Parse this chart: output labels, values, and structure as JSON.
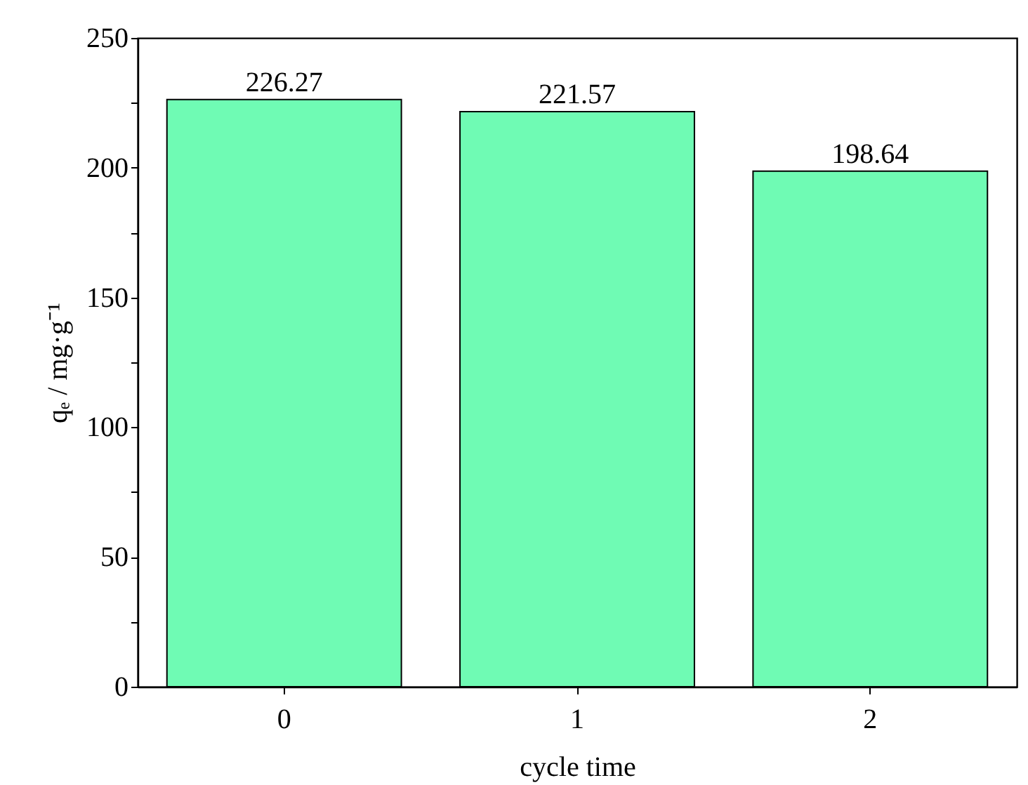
{
  "chart_data": {
    "type": "bar",
    "xlabel": "cycle time",
    "ylabel": "qₑ / mg·g⁻¹",
    "categories": [
      "0",
      "1",
      "2"
    ],
    "values": [
      226.27,
      221.57,
      198.64
    ],
    "color": "#6ffbb4",
    "ylim": [
      0,
      250
    ],
    "yticks": [
      0,
      {
        "value": 25,
        "label": null
      },
      50,
      {
        "value": 75,
        "label": null
      },
      100,
      {
        "value": 125,
        "label": null
      },
      150,
      {
        "value": 175,
        "label": null
      },
      200,
      {
        "value": 225,
        "label": null
      },
      250
    ],
    "data_labels": true,
    "grid": false
  }
}
